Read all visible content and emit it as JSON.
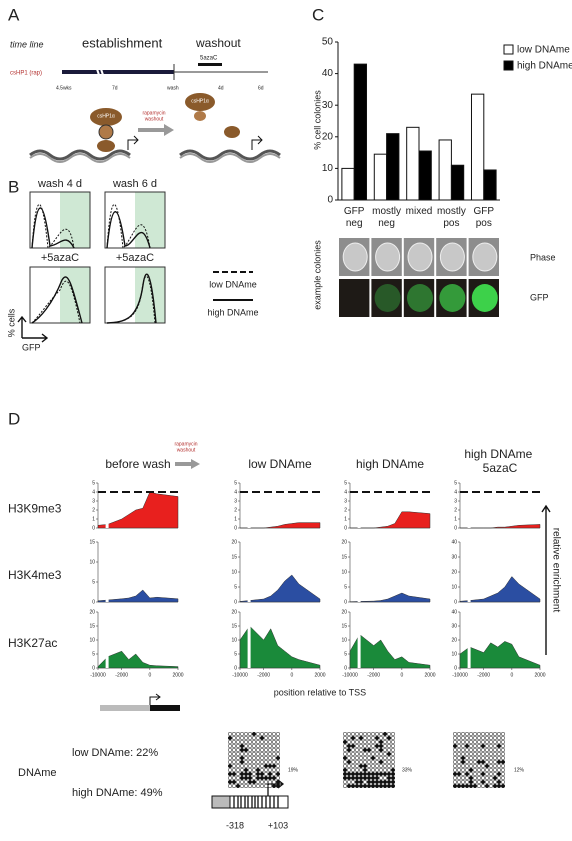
{
  "panel_a": {
    "letter": "A",
    "time_line": "time line",
    "establishment": "establishment",
    "washout": "washout",
    "drug": "5azaC",
    "construct": "csHP1 (rap)",
    "timepoints": [
      "4.5wks",
      "7d",
      "wash",
      "4d",
      "6d"
    ],
    "protein": "csHP1α",
    "rapamycin": [
      "rapamycin",
      "washout"
    ]
  },
  "panel_b": {
    "letter": "B",
    "titles": [
      "wash 4 d",
      "wash 6 d"
    ],
    "treatment": "+5azaC",
    "legend": [
      "low DNAme",
      "high DNAme"
    ],
    "ylabel": "% cells",
    "xlabel": "GFP"
  },
  "panel_c": {
    "letter": "C",
    "type": "bar",
    "categories": [
      "GFP neg",
      "mostly neg",
      "mixed",
      "mostly pos",
      "GFP pos"
    ],
    "series": [
      {
        "name": "low DNAme",
        "color": "#ffffff",
        "values": [
          10,
          14.5,
          23,
          19,
          33.5
        ]
      },
      {
        "name": "high DNAme",
        "color": "#000000",
        "values": [
          43,
          21,
          15.5,
          11,
          9.5
        ]
      }
    ],
    "ylim": [
      0,
      50
    ],
    "yticks": [
      0,
      10,
      20,
      30,
      40,
      50
    ],
    "ylabel": "% cell colonies",
    "images_label": "example colonies",
    "image_rows": [
      "Phase",
      "GFP"
    ]
  },
  "panel_d": {
    "letter": "D",
    "rapamycin": [
      "rapamycin",
      "washout"
    ],
    "columns": [
      "before wash",
      "low DNAme",
      "high DNAme",
      "high DNAme +5azaC"
    ],
    "side_label": "relative enrichment",
    "xlabel": "position relative to TSS",
    "x": [
      -10000,
      -3000,
      -2000,
      -1500,
      -1000,
      -500,
      0,
      500,
      2000
    ],
    "xticks": [
      -10000,
      -2000,
      0,
      2000
    ],
    "rows": [
      {
        "label": "H3K9me3",
        "color": "#e8201e",
        "reference": 4,
        "columns": [
          {
            "ylim": [
              0,
              5
            ],
            "yticks": [
              0,
              1,
              2,
              3,
              4,
              5
            ],
            "values": [
              0.3,
              0.4,
              1,
              1.5,
              2,
              2.2,
              4,
              3.8,
              3.5
            ]
          },
          {
            "ylim": [
              0,
              5
            ],
            "yticks": [
              0,
              1,
              2,
              3,
              4,
              5
            ],
            "values": [
              0,
              0,
              0,
              0.1,
              0.2,
              0.4,
              0.5,
              0.6,
              0.6
            ]
          },
          {
            "ylim": [
              0,
              5
            ],
            "yticks": [
              0,
              1,
              2,
              3,
              4,
              5
            ],
            "values": [
              0,
              0,
              0,
              0.1,
              0.2,
              0.5,
              1.8,
              1.8,
              1.6
            ]
          },
          {
            "ylim": [
              0,
              5
            ],
            "yticks": [
              0,
              1,
              2,
              3,
              4,
              5
            ],
            "values": [
              0,
              0,
              0,
              0,
              0.1,
              0.1,
              0.2,
              0.3,
              0.4
            ]
          }
        ]
      },
      {
        "label": "H3K4me3",
        "color": "#2b4ea2",
        "columns": [
          {
            "ylim": [
              0,
              15
            ],
            "yticks": [
              0,
              5,
              10,
              15
            ],
            "values": [
              0.3,
              0.5,
              0.8,
              1,
              1.5,
              3,
              1,
              1.2,
              0.8
            ]
          },
          {
            "ylim": [
              0,
              20
            ],
            "yticks": [
              0,
              5,
              10,
              15,
              20
            ],
            "values": [
              0.2,
              0.5,
              1,
              2,
              4,
              7,
              9,
              6,
              1
            ]
          },
          {
            "ylim": [
              0,
              20
            ],
            "yticks": [
              0,
              5,
              10,
              15,
              20
            ],
            "values": [
              0.1,
              0.2,
              0.3,
              0.5,
              1,
              2,
              3,
              2,
              1
            ]
          },
          {
            "ylim": [
              0,
              40
            ],
            "yticks": [
              0,
              10,
              20,
              30,
              40
            ],
            "values": [
              0.5,
              1,
              2,
              4,
              6,
              10,
              17,
              12,
              2
            ]
          }
        ]
      },
      {
        "label": "H3K27ac",
        "color": "#1a8a3a",
        "columns": [
          {
            "ylim": [
              0,
              20
            ],
            "yticks": [
              0,
              5,
              10,
              15,
              20
            ],
            "values": [
              0.5,
              4,
              6,
              3,
              5,
              2,
              1,
              0.8,
              0.5
            ]
          },
          {
            "ylim": [
              0,
              20
            ],
            "yticks": [
              0,
              5,
              10,
              15,
              20
            ],
            "values": [
              10,
              15,
              10,
              14,
              8,
              6,
              4,
              3,
              1
            ]
          },
          {
            "ylim": [
              0,
              20
            ],
            "yticks": [
              0,
              5,
              10,
              15,
              20
            ],
            "values": [
              6,
              12,
              8,
              10,
              6,
              3,
              4,
              2,
              1
            ]
          },
          {
            "ylim": [
              0,
              40
            ],
            "yticks": [
              0,
              10,
              20,
              30,
              40
            ],
            "values": [
              10,
              15,
              11,
              18,
              15,
              19,
              17,
              8,
              2
            ]
          }
        ]
      }
    ],
    "dname_label": "DNAme",
    "dname_summary": [
      "low DNAme: 22%",
      "high DNAme: 49%"
    ],
    "methylation": [
      "19%",
      "33%",
      "12%"
    ],
    "cpg_positions": [
      "-318",
      "+103"
    ]
  }
}
